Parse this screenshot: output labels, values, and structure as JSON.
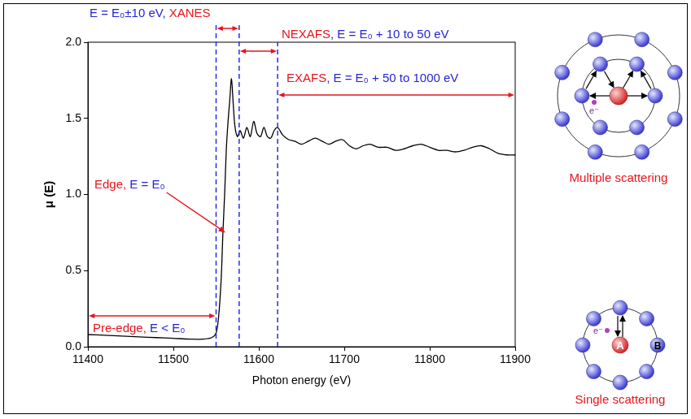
{
  "chart_data": {
    "type": "line",
    "x_label": "Photon energy (eV)",
    "y_label": "μ (E)",
    "color": "#000000",
    "x": [
      11400,
      11420,
      11440,
      11460,
      11480,
      11500,
      11520,
      11535,
      11545,
      11550,
      11553,
      11556,
      11558,
      11560,
      11562,
      11564,
      11566,
      11568,
      11570,
      11572,
      11575,
      11578,
      11582,
      11586,
      11590,
      11594,
      11598,
      11602,
      11606,
      11610,
      11614,
      11618,
      11622,
      11628,
      11635,
      11642,
      11650,
      11658,
      11666,
      11674,
      11682,
      11690,
      11698,
      11706,
      11714,
      11722,
      11730,
      11740,
      11750,
      11760,
      11770,
      11780,
      11790,
      11800,
      11810,
      11820,
      11830,
      11840,
      11850,
      11860,
      11870,
      11880,
      11890,
      11900
    ],
    "values": [
      0.08,
      0.075,
      0.07,
      0.065,
      0.06,
      0.055,
      0.05,
      0.05,
      0.06,
      0.09,
      0.2,
      0.45,
      0.75,
      1.0,
      1.3,
      1.48,
      1.62,
      1.76,
      1.6,
      1.45,
      1.38,
      1.42,
      1.37,
      1.44,
      1.38,
      1.48,
      1.4,
      1.38,
      1.44,
      1.38,
      1.37,
      1.42,
      1.44,
      1.39,
      1.36,
      1.35,
      1.33,
      1.35,
      1.37,
      1.35,
      1.33,
      1.35,
      1.36,
      1.32,
      1.3,
      1.32,
      1.33,
      1.31,
      1.31,
      1.29,
      1.3,
      1.32,
      1.33,
      1.31,
      1.29,
      1.29,
      1.28,
      1.29,
      1.31,
      1.32,
      1.3,
      1.27,
      1.26,
      1.26
    ],
    "xlim": [
      11400,
      11900
    ],
    "xticks": [
      11400,
      11500,
      11600,
      11700,
      11800,
      11900
    ],
    "ylim": [
      0,
      2
    ],
    "yticks": [
      {
        "value": 0,
        "label": "0.0"
      },
      0.5,
      {
        "value": 1,
        "label": "1.0"
      },
      1.5,
      {
        "value": 2,
        "label": "2.0"
      }
    ],
    "grid": false,
    "vlines": {
      "x": [
        11550,
        11577,
        11622
      ],
      "color": "#2a2ae8",
      "line_style": "dashed"
    },
    "annotations": [
      {
        "parts": [
          {
            "text": "E = E₀±10 eV, ",
            "color": "#2323d8"
          },
          {
            "text": "XANES",
            "color": "#e8141c"
          }
        ],
        "x_range": [
          11550,
          11577
        ],
        "color": "#e8141c"
      },
      {
        "parts": [
          {
            "text": "NEXAFS",
            "color": "#e8141c"
          },
          {
            "text": ", E = E₀ + 10 to 50 eV",
            "color": "#2323d8"
          }
        ],
        "x_range": [
          11577,
          11622
        ],
        "color": "#e8141c"
      },
      {
        "parts": [
          {
            "text": "EXAFS",
            "color": "#e8141c"
          },
          {
            "text": ", E = E₀ + 50 to 1000 eV",
            "color": "#2323d8"
          }
        ],
        "x_range": [
          11622,
          11900
        ],
        "color": "#e8141c"
      },
      {
        "parts": [
          {
            "text": "Edge, ",
            "color": "#e8141c"
          },
          {
            "text": "E = E₀",
            "color": "#2323d8"
          }
        ],
        "points_to": {
          "x": 11558,
          "y": 0.75
        },
        "color": "#e8141c"
      },
      {
        "parts": [
          {
            "text": "Pre-edge, ",
            "color": "#e8141c"
          },
          {
            "text": "E < E₀",
            "color": "#2323d8"
          }
        ],
        "x_range": [
          11400,
          11550
        ],
        "color": "#e8141c"
      }
    ]
  },
  "diagrams": [
    {
      "caption": "Multiple scattering",
      "caption_color": "#e8141c",
      "electron": "e⁻"
    },
    {
      "caption": "Single scattering",
      "caption_color": "#e8141c",
      "electron": "e⁻",
      "absorber": "A",
      "scatterer": "B"
    }
  ]
}
